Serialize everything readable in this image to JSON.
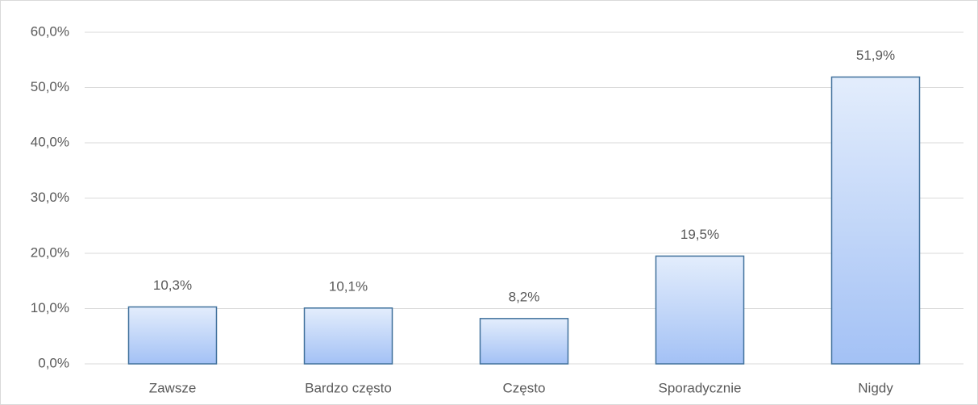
{
  "chart_data": {
    "type": "bar",
    "categories": [
      "Zawsze",
      "Bardzo często",
      "Często",
      "Sporadycznie",
      "Nigdy"
    ],
    "values": [
      10.3,
      10.1,
      8.2,
      19.5,
      51.9
    ],
    "value_labels": [
      "10,3%",
      "10,1%",
      "8,2%",
      "19,5%",
      "51,9%"
    ],
    "color": "#a3c1f5",
    "ylim": [
      0,
      60
    ],
    "yticks": [
      {
        "value": 0,
        "label": "0,0%"
      },
      {
        "value": 10,
        "label": "10,0%"
      },
      {
        "value": 20,
        "label": "20,0%"
      },
      {
        "value": 30,
        "label": "30,0%"
      },
      {
        "value": 40,
        "label": "40,0%"
      },
      {
        "value": 50,
        "label": "50,0%"
      },
      {
        "value": 60,
        "label": "60,0%"
      }
    ],
    "grid": true
  }
}
